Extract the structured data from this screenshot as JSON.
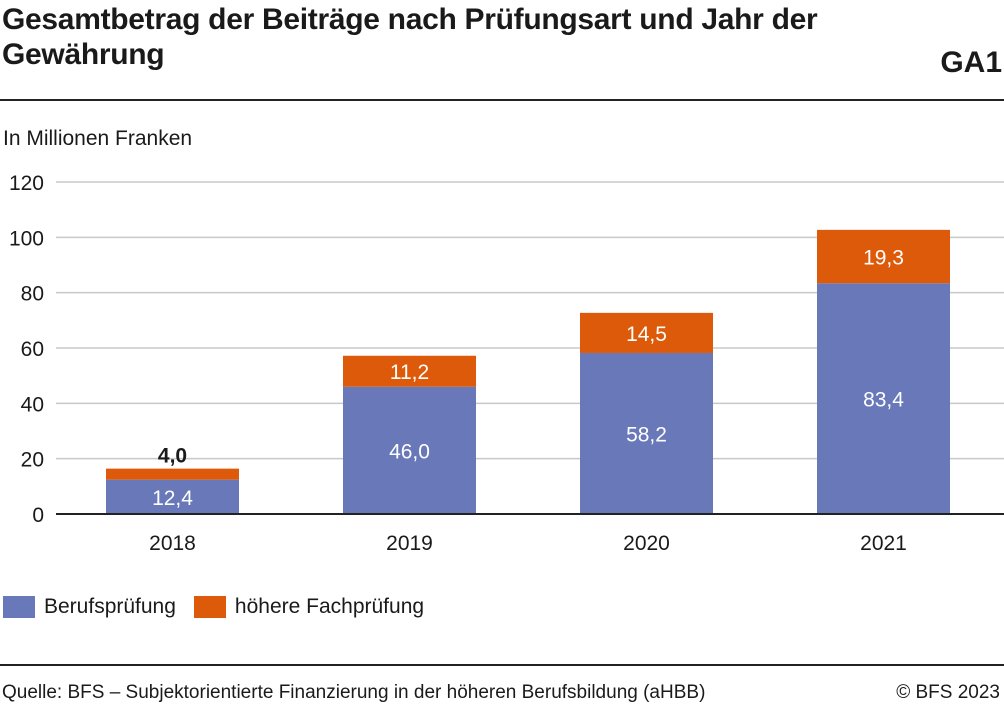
{
  "header": {
    "title": "Gesamtbetrag der Beiträge nach Prüfungsart und Jahr der Gewährung",
    "code": "GA1",
    "unit_label": "In Millionen Franken"
  },
  "colors": {
    "berufspruefung": "#6878b8",
    "hoehere_fachpruefung": "#dd5a0a",
    "grid": "#c8c8c8",
    "axis": "#222222"
  },
  "chart_data": {
    "type": "bar",
    "stacked": true,
    "categories": [
      "2018",
      "2019",
      "2020",
      "2021"
    ],
    "series": [
      {
        "name": "Berufsprüfung",
        "values": [
          12.4,
          46.0,
          58.2,
          83.4
        ],
        "labels": [
          "12,4",
          "46,0",
          "58,2",
          "83,4"
        ],
        "color": "#6878b8"
      },
      {
        "name": "höhere Fachprüfung",
        "values": [
          4.0,
          11.2,
          14.5,
          19.3
        ],
        "labels": [
          "4,0",
          "11,2",
          "14,5",
          "19,3"
        ],
        "color": "#dd5a0a"
      }
    ],
    "ylabel": "In Millionen Franken",
    "ylim": [
      0,
      120
    ],
    "yticks": [
      0,
      20,
      40,
      60,
      80,
      100,
      120
    ],
    "grid": true,
    "legend_position": "bottom-left"
  },
  "legend": {
    "items": [
      "Berufsprüfung",
      "höhere Fachprüfung"
    ]
  },
  "footer": {
    "source": "Quelle: BFS – Subjektorientierte Finanzierung in der höheren Berufsbildung (aHBB)",
    "copyright": "© BFS 2023"
  }
}
